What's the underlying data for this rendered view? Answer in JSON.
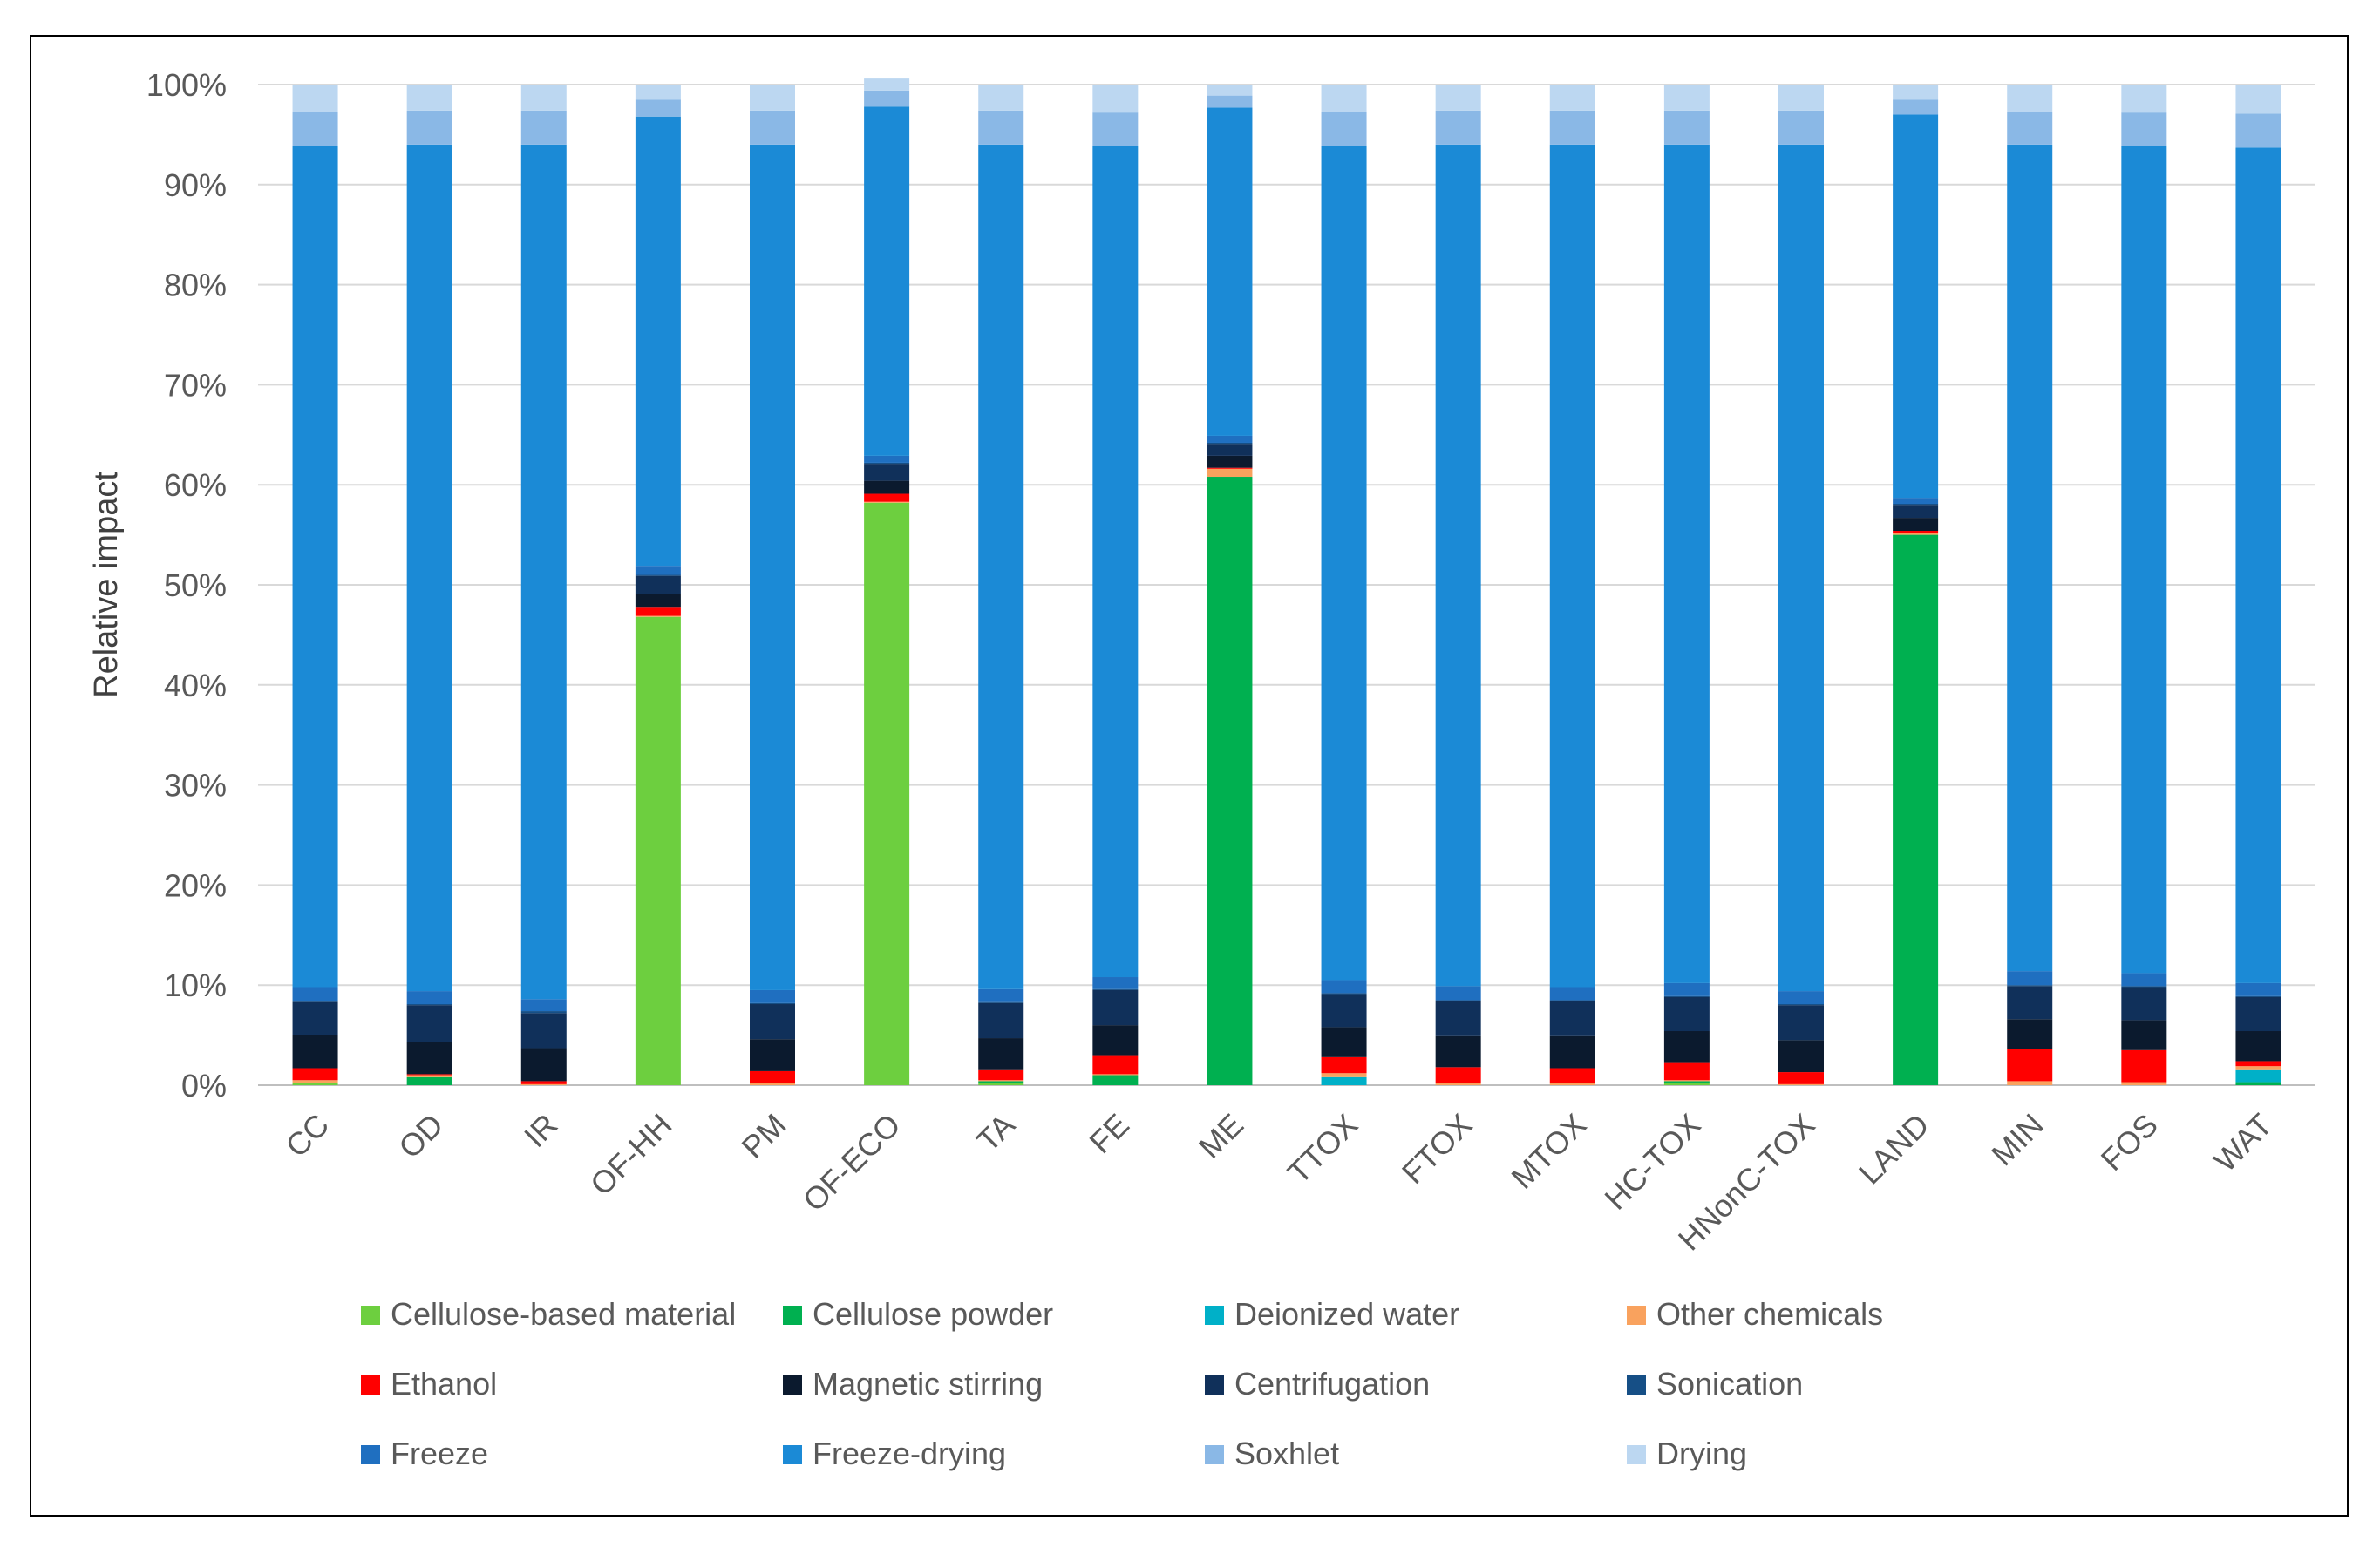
{
  "chart_data": {
    "type": "bar",
    "stacked": true,
    "ylabel": "Relative impact",
    "xlabel": "",
    "ylim": [
      0,
      100
    ],
    "yticks": [
      "0%",
      "10%",
      "20%",
      "30%",
      "40%",
      "50%",
      "60%",
      "70%",
      "80%",
      "90%",
      "100%"
    ],
    "grid": true,
    "legend_position": "bottom",
    "categories": [
      "CC",
      "OD",
      "IR",
      "OF-HH",
      "PM",
      "OF-ECO",
      "TA",
      "FE",
      "ME",
      "TTOX",
      "FTOX",
      "MTOX",
      "HC-TOX",
      "HNonC-TOX",
      "LAND",
      "MIN",
      "FOS",
      "WAT"
    ],
    "series": [
      {
        "name": "Cellulose-based  material",
        "color": "#6dcf3f",
        "values": [
          0.2,
          0,
          0,
          46.8,
          0,
          58.2,
          0.2,
          0,
          0,
          0,
          0,
          0,
          0.2,
          0,
          0,
          0,
          0,
          0
        ]
      },
      {
        "name": "Cellulose powder",
        "color": "#00b050",
        "values": [
          0,
          0.8,
          0,
          0,
          0,
          0,
          0.2,
          1.0,
          60.8,
          0,
          0,
          0,
          0.2,
          0,
          55.0,
          0,
          0,
          0.3
        ]
      },
      {
        "name": "Deionized water",
        "color": "#00b0c8",
        "values": [
          0,
          0,
          0,
          0,
          0,
          0,
          0,
          0,
          0,
          0.8,
          0,
          0,
          0,
          0,
          0,
          0,
          0,
          1.2
        ]
      },
      {
        "name": "Other chemicals",
        "color": "#f9a25e",
        "values": [
          0.3,
          0.2,
          0.1,
          0.1,
          0.2,
          0.1,
          0.1,
          0.1,
          0.8,
          0.4,
          0.2,
          0.2,
          0.1,
          0.1,
          0.2,
          0.4,
          0.3,
          0.4
        ]
      },
      {
        "name": "Ethanol",
        "color": "#ff0000",
        "values": [
          1.2,
          0.1,
          0.3,
          0.9,
          1.2,
          0.8,
          1.0,
          1.9,
          0.1,
          1.6,
          1.6,
          1.5,
          1.8,
          1.2,
          0.2,
          3.2,
          3.2,
          0.5
        ]
      },
      {
        "name": "Magnetic stirring",
        "color": "#0b1a2e",
        "values": [
          3.3,
          3.2,
          3.3,
          1.3,
          3.2,
          1.3,
          3.2,
          3.0,
          1.2,
          3.0,
          3.1,
          3.2,
          3.1,
          3.2,
          1.3,
          3.0,
          3.0,
          3.0
        ]
      },
      {
        "name": "Centrifugation",
        "color": "#10305a",
        "values": [
          3.3,
          3.7,
          3.5,
          1.8,
          3.5,
          1.7,
          3.5,
          3.5,
          1.2,
          3.3,
          3.5,
          3.5,
          3.4,
          3.5,
          1.3,
          3.3,
          3.3,
          3.4
        ]
      },
      {
        "name": "Sonication",
        "color": "#164f86",
        "values": [
          0.1,
          0.1,
          0.2,
          0.1,
          0.1,
          0.1,
          0.1,
          0.1,
          0.1,
          0.1,
          0.1,
          0.1,
          0.1,
          0.1,
          0.1,
          0.1,
          0.1,
          0.1
        ]
      },
      {
        "name": "Freeze",
        "color": "#1f6fc0",
        "values": [
          1.4,
          1.3,
          1.2,
          0.9,
          1.3,
          0.7,
          1.3,
          1.2,
          0.7,
          1.3,
          1.4,
          1.3,
          1.3,
          1.3,
          0.6,
          1.4,
          1.3,
          1.3
        ]
      },
      {
        "name": "Freeze-drying",
        "color": "#1b8ad6",
        "values": [
          84.1,
          84.6,
          85.4,
          44.9,
          84.5,
          34.9,
          84.4,
          83.1,
          32.8,
          83.4,
          84.1,
          84.2,
          83.8,
          84.6,
          38.3,
          82.6,
          82.7,
          83.5
        ]
      },
      {
        "name": "Soxhlet",
        "color": "#8ab8e6",
        "values": [
          3.4,
          3.4,
          3.4,
          1.7,
          3.4,
          1.6,
          3.4,
          3.3,
          1.2,
          3.4,
          3.4,
          3.4,
          3.4,
          3.4,
          1.5,
          3.3,
          3.3,
          3.4
        ]
      },
      {
        "name": "Drying",
        "color": "#bcd7f1",
        "values": [
          2.7,
          2.6,
          2.6,
          1.5,
          2.6,
          1.2,
          2.6,
          2.8,
          1.1,
          2.7,
          2.6,
          2.6,
          2.6,
          2.6,
          1.5,
          2.7,
          2.8,
          2.9
        ]
      }
    ]
  }
}
